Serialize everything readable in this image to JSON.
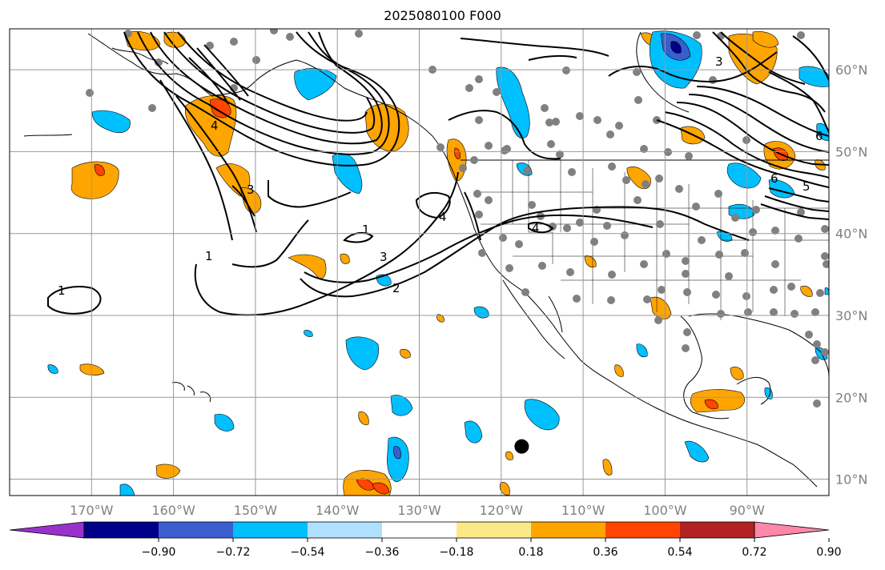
{
  "title": "2025080100 F000",
  "map": {
    "projection": "lat-lon",
    "lon_range": [
      -180,
      -80
    ],
    "lat_range": [
      8,
      65
    ],
    "grid": true,
    "lon_ticks": [
      {
        "value": -170,
        "label": "170°W"
      },
      {
        "value": -160,
        "label": "160°W"
      },
      {
        "value": -150,
        "label": "150°W"
      },
      {
        "value": -140,
        "label": "140°W"
      },
      {
        "value": -130,
        "label": "130°W"
      },
      {
        "value": -120,
        "label": "120°W"
      },
      {
        "value": -110,
        "label": "110°W"
      },
      {
        "value": -100,
        "label": "100°W"
      },
      {
        "value": -90,
        "label": "90°W"
      }
    ],
    "lat_ticks": [
      {
        "value": 60,
        "label": "60°N"
      },
      {
        "value": 50,
        "label": "50°N"
      },
      {
        "value": 40,
        "label": "40°N"
      },
      {
        "value": 30,
        "label": "30°N"
      },
      {
        "value": 20,
        "label": "20°N"
      },
      {
        "value": 10,
        "label": "10°N"
      }
    ],
    "tick_label_color": "#808080",
    "contour_labels": [
      "1",
      "1",
      "1",
      "2",
      "3",
      "3",
      "4",
      "4",
      "4",
      "5",
      "6",
      "6",
      "3"
    ],
    "marker": {
      "lon": -117.5,
      "lat": 14,
      "color": "#000000"
    }
  },
  "colorbar": {
    "ticks": [
      "−0.90",
      "−0.72",
      "−0.54",
      "−0.36",
      "−0.18",
      "0.18",
      "0.36",
      "0.54",
      "0.72",
      "0.90"
    ],
    "colors": [
      "#9932cc",
      "#00008b",
      "#3a5fcd",
      "#00bfff",
      "#afe0ff",
      "#ffffff",
      "#fbe989",
      "#ffa500",
      "#ff4500",
      "#b22222",
      "#ff88aa"
    ]
  }
}
